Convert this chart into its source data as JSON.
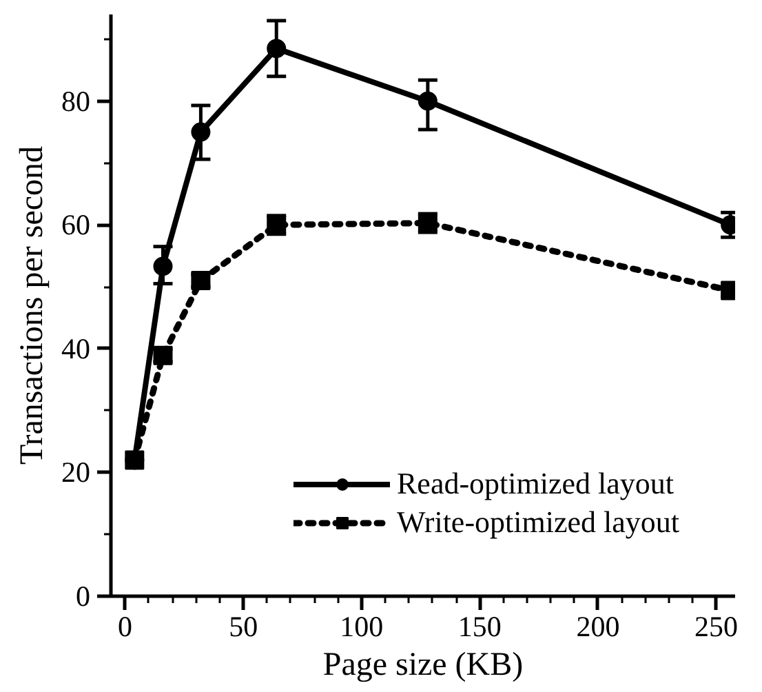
{
  "chart_data": {
    "type": "line",
    "xlabel": "Page size (KB)",
    "ylabel": "Transactions per second",
    "x": [
      4,
      16,
      32,
      64,
      128,
      256
    ],
    "series": [
      {
        "name": "Read-optimized layout",
        "color": "#000000",
        "marker": "circle",
        "line_style": "solid",
        "values": [
          22,
          53.3,
          75,
          88.5,
          80,
          60
        ],
        "errors": [
          null,
          [
            50.5,
            56.5
          ],
          [
            70.6,
            79.3
          ],
          [
            84,
            93
          ],
          [
            75.4,
            83.4
          ],
          [
            58,
            62
          ]
        ]
      },
      {
        "name": "Write-optimized layout",
        "color": "#000000",
        "marker": "square",
        "line_style": "dotted",
        "values": [
          22,
          38.9,
          51,
          60,
          60.3,
          49.4
        ],
        "errors": [
          null,
          1,
          1,
          1.5,
          1.5,
          1
        ]
      }
    ],
    "xlim": [
      -6,
      258
    ],
    "xticks": [
      0,
      50,
      100,
      150,
      200,
      250
    ],
    "ylim": [
      0,
      94
    ],
    "yticks": [
      0,
      20,
      40,
      60,
      80
    ],
    "grid": false,
    "legend": "bottom right"
  }
}
